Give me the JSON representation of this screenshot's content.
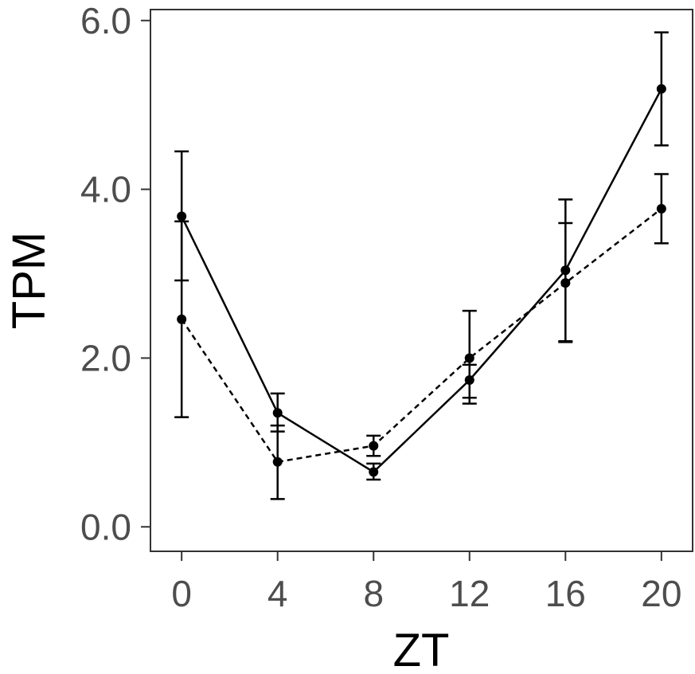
{
  "chart_data": {
    "type": "line",
    "xlabel": "ZT",
    "ylabel": "TPM",
    "x": [
      0,
      4,
      8,
      12,
      16,
      20
    ],
    "x_tick_labels": [
      "0",
      "4",
      "8",
      "12",
      "16",
      "20"
    ],
    "y_ticks": [
      0.0,
      2.0,
      4.0,
      6.0
    ],
    "y_tick_labels": [
      "0.0",
      "2.0",
      "4.0",
      "6.0"
    ],
    "xlim": [
      -1.3,
      21.3
    ],
    "ylim": [
      -0.29,
      6.13
    ],
    "grid": false,
    "series": [
      {
        "line_style": "solid",
        "values": [
          3.68,
          1.35,
          0.65,
          1.74,
          3.04,
          5.19
        ],
        "error_low": [
          2.92,
          1.13,
          0.56,
          1.46,
          2.2,
          4.52
        ],
        "error_high": [
          4.45,
          1.58,
          0.75,
          1.92,
          3.88,
          5.86
        ]
      },
      {
        "line_style": "dashed",
        "values": [
          2.46,
          0.77,
          0.96,
          2.0,
          2.89,
          3.77
        ],
        "error_low": [
          1.3,
          0.33,
          0.84,
          1.53,
          2.19,
          3.36
        ],
        "error_high": [
          3.62,
          1.2,
          1.08,
          2.56,
          3.6,
          4.18
        ]
      }
    ]
  }
}
